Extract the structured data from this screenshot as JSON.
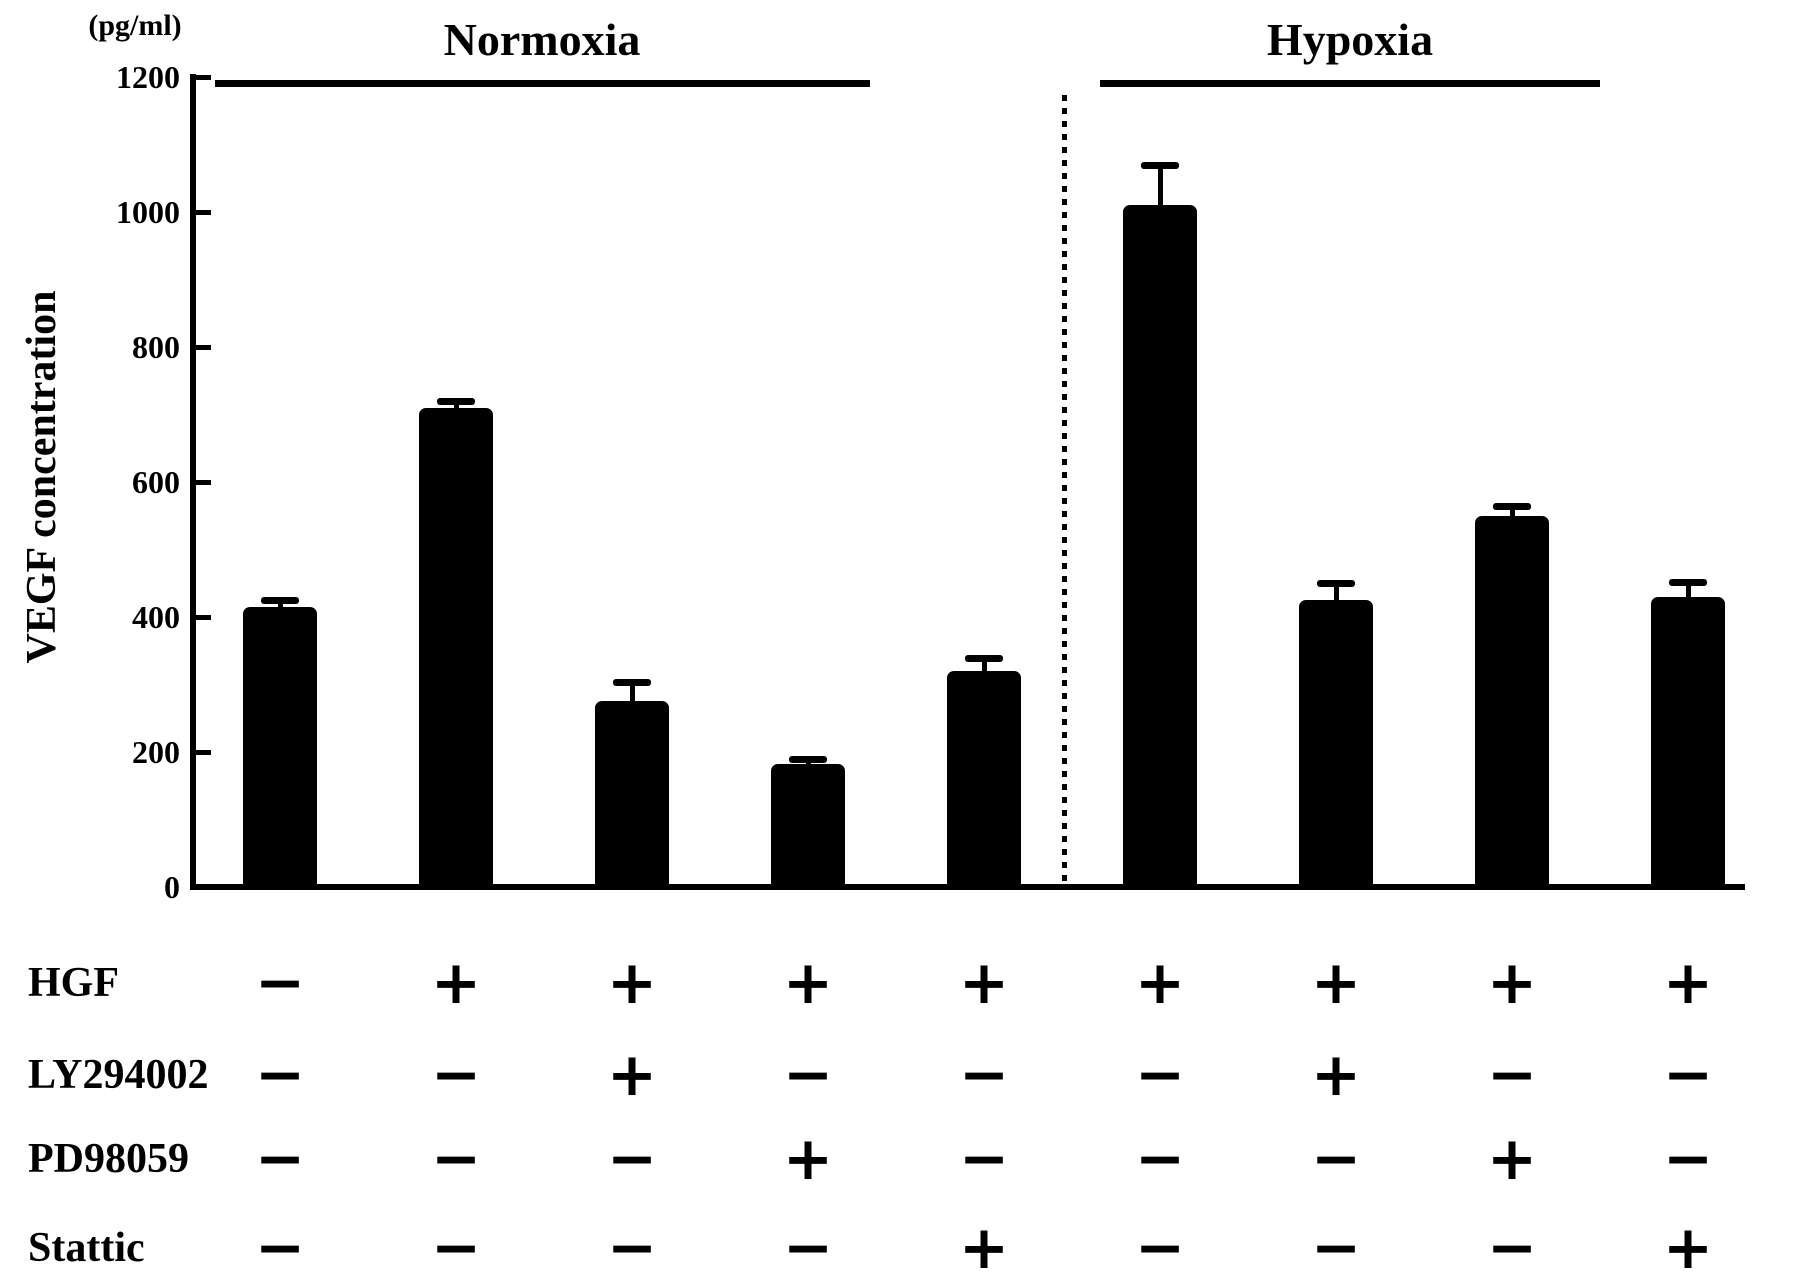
{
  "figure": {
    "unit_label": "(pg/ml)",
    "y_axis_label": "VEGF concentration",
    "group_labels": {
      "normoxia": "Normoxia",
      "hypoxia": "Hypoxia"
    }
  },
  "chart_data": {
    "type": "bar",
    "title": "",
    "xlabel": "",
    "ylabel": "VEGF concentration",
    "y_unit": "pg/ml",
    "ylim": [
      0,
      1200
    ],
    "yticks": [
      0,
      200,
      400,
      600,
      800,
      1000,
      1200
    ],
    "grid": false,
    "bar_color": "#000000",
    "background_color": "#ffffff",
    "groups": [
      "Normoxia",
      "Hypoxia"
    ],
    "series": [
      {
        "name": "Normoxia",
        "values": [
          415,
          710,
          275,
          182,
          320
        ],
        "errors_plus": [
          10,
          10,
          28,
          8,
          20
        ]
      },
      {
        "name": "Hypoxia",
        "values": [
          1010,
          425,
          550,
          430
        ],
        "errors_plus": [
          60,
          25,
          15,
          22
        ]
      }
    ],
    "conditions": {
      "row_labels": [
        "HGF",
        "LY294002",
        "PD98059",
        "Stattic"
      ],
      "signs": [
        [
          "−",
          "+",
          "+",
          "+",
          "+",
          "+",
          "+",
          "+",
          "+"
        ],
        [
          "−",
          "−",
          "+",
          "−",
          "−",
          "−",
          "+",
          "−",
          "−"
        ],
        [
          "−",
          "−",
          "−",
          "+",
          "−",
          "−",
          "−",
          "+",
          "−"
        ],
        [
          "−",
          "−",
          "−",
          "−",
          "+",
          "−",
          "−",
          "−",
          "+"
        ]
      ]
    }
  }
}
